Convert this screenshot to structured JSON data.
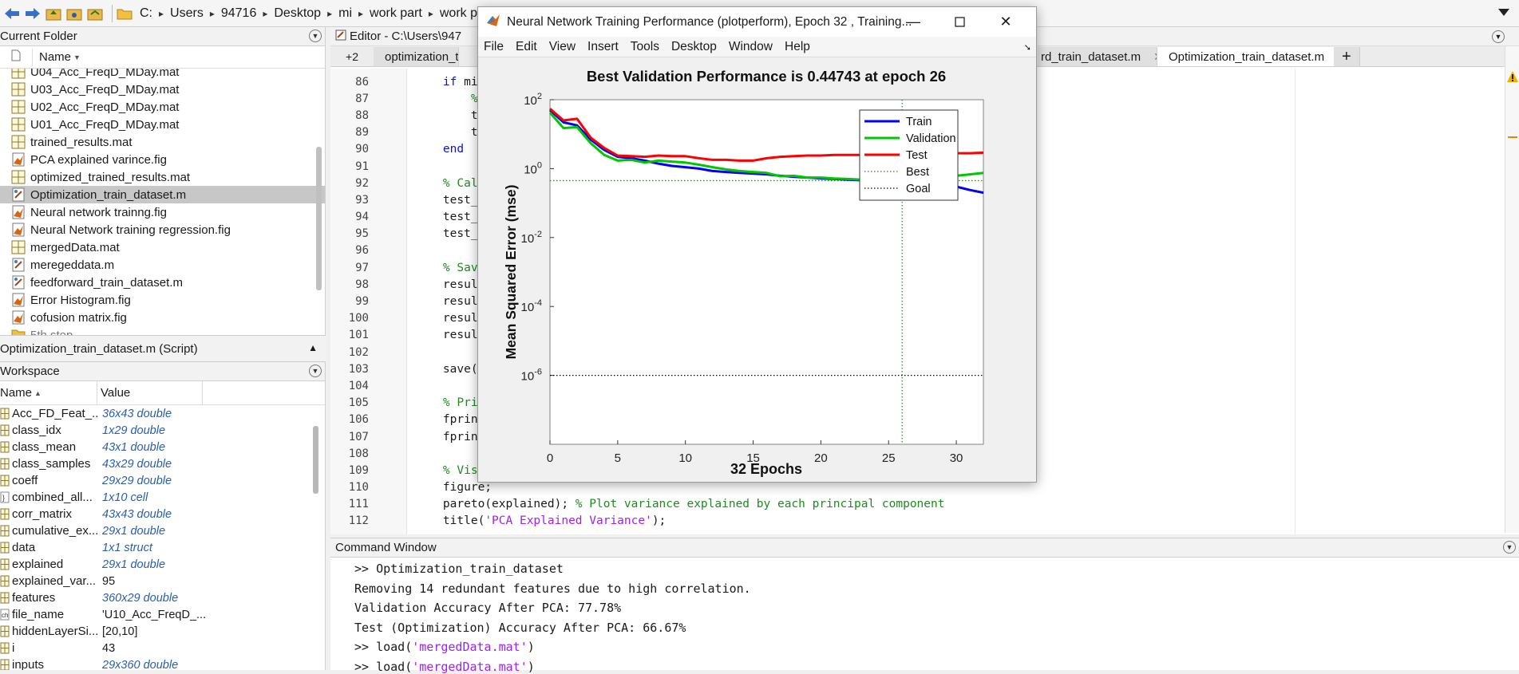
{
  "address": {
    "crumbs": [
      "C:",
      "Users",
      "94716",
      "Desktop",
      "mi",
      "work part",
      "work p"
    ]
  },
  "current_folder": {
    "title": "Current Folder",
    "col_name": "Name",
    "files": [
      {
        "name": "U04_Acc_FreqD_MDay.mat",
        "type": "mat"
      },
      {
        "name": "U03_Acc_FreqD_MDay.mat",
        "type": "mat"
      },
      {
        "name": "U02_Acc_FreqD_MDay.mat",
        "type": "mat"
      },
      {
        "name": "U01_Acc_FreqD_MDay.mat",
        "type": "mat"
      },
      {
        "name": "trained_results.mat",
        "type": "mat"
      },
      {
        "name": "PCA explained varince.fig",
        "type": "fig"
      },
      {
        "name": "optimized_trained_results.mat",
        "type": "mat"
      },
      {
        "name": "Optimization_train_dataset.m",
        "type": "m"
      },
      {
        "name": "Neural network trainng.fig",
        "type": "fig"
      },
      {
        "name": "Neural Network training regression.fig",
        "type": "fig"
      },
      {
        "name": "mergedData.mat",
        "type": "mat"
      },
      {
        "name": "meregeddata.m",
        "type": "m"
      },
      {
        "name": "feedforward_train_dataset.m",
        "type": "m"
      },
      {
        "name": "Error Histogram.fig",
        "type": "fig"
      },
      {
        "name": "cofusion matrix.fig",
        "type": "fig"
      },
      {
        "name": "5th step",
        "type": "folder"
      }
    ]
  },
  "script_info": "Optimization_train_dataset.m  (Script)",
  "workspace": {
    "title": "Workspace",
    "col_name": "Name",
    "col_value": "Value",
    "vars": [
      {
        "name": "Acc_FD_Feat_...",
        "value": "36x43 double",
        "kind": "num"
      },
      {
        "name": "class_idx",
        "value": "1x29 double",
        "kind": "num"
      },
      {
        "name": "class_mean",
        "value": "43x1 double",
        "kind": "num"
      },
      {
        "name": "class_samples",
        "value": "43x29 double",
        "kind": "num"
      },
      {
        "name": "coeff",
        "value": "29x29 double",
        "kind": "num"
      },
      {
        "name": "combined_all...",
        "value": "1x10 cell",
        "kind": "cell"
      },
      {
        "name": "corr_matrix",
        "value": "43x43 double",
        "kind": "num"
      },
      {
        "name": "cumulative_ex...",
        "value": "29x1 double",
        "kind": "num"
      },
      {
        "name": "data",
        "value": "1x1 struct",
        "kind": "struct"
      },
      {
        "name": "explained",
        "value": "29x1 double",
        "kind": "num"
      },
      {
        "name": "explained_var...",
        "value": "95",
        "kind": "scalar"
      },
      {
        "name": "features",
        "value": "360x29 double",
        "kind": "num"
      },
      {
        "name": "file_name",
        "value": "'U10_Acc_FreqD_...",
        "kind": "char"
      },
      {
        "name": "hiddenLayerSi...",
        "value": "[20,10]",
        "kind": "scalar"
      },
      {
        "name": "i",
        "value": "43",
        "kind": "scalar"
      },
      {
        "name": "inputs",
        "value": "29x360 double",
        "kind": "num"
      }
    ]
  },
  "editor": {
    "title": "Editor - C:\\Users\\947",
    "tab_count_badge": "+2",
    "tabs": [
      {
        "label": "optimization_trai",
        "active": false
      },
      {
        "label": "rd_train_dataset.m",
        "active": false
      },
      {
        "label": "Optimization_train_dataset.m",
        "active": true
      }
    ],
    "lines": [
      {
        "n": "86",
        "parts": [
          [
            "    ",
            ""
          ],
          [
            "if",
            "kw"
          ],
          [
            " min_",
            ""
          ]
        ]
      },
      {
        "n": "87",
        "parts": [
          [
            "        ",
            ""
          ],
          [
            "% A",
            "cm"
          ]
        ]
      },
      {
        "n": "88",
        "parts": [
          [
            "        tes",
            ""
          ]
        ]
      },
      {
        "n": "89",
        "parts": [
          [
            "        tes",
            ""
          ]
        ]
      },
      {
        "n": "90",
        "parts": [
          [
            "    ",
            ""
          ],
          [
            "end",
            "kw"
          ]
        ]
      },
      {
        "n": "91",
        "parts": [
          [
            "",
            ""
          ]
        ]
      },
      {
        "n": "92",
        "parts": [
          [
            "    ",
            ""
          ],
          [
            "% Calcu",
            "cm"
          ]
        ]
      },
      {
        "n": "93",
        "parts": [
          [
            "    test_co",
            ""
          ]
        ]
      },
      {
        "n": "94",
        "parts": [
          [
            "    test_to",
            ""
          ]
        ]
      },
      {
        "n": "95",
        "parts": [
          [
            "    test_ac",
            ""
          ]
        ]
      },
      {
        "n": "96",
        "parts": [
          [
            "",
            ""
          ]
        ]
      },
      {
        "n": "97",
        "parts": [
          [
            "    ",
            ""
          ],
          [
            "% Save",
            "cm"
          ]
        ]
      },
      {
        "n": "98",
        "parts": [
          [
            "    results",
            ""
          ]
        ]
      },
      {
        "n": "99",
        "parts": [
          [
            "    results",
            ""
          ]
        ]
      },
      {
        "n": "100",
        "parts": [
          [
            "    results",
            ""
          ]
        ]
      },
      {
        "n": "101",
        "parts": [
          [
            "    results",
            ""
          ]
        ]
      },
      {
        "n": "102",
        "parts": [
          [
            "",
            ""
          ]
        ]
      },
      {
        "n": "103",
        "parts": [
          [
            "    save(",
            ""
          ],
          [
            "'o",
            "st"
          ]
        ]
      },
      {
        "n": "104",
        "parts": [
          [
            "",
            ""
          ]
        ]
      },
      {
        "n": "105",
        "parts": [
          [
            "    ",
            ""
          ],
          [
            "% Print",
            "cm"
          ]
        ]
      },
      {
        "n": "106",
        "parts": [
          [
            "    fprintf",
            ""
          ]
        ]
      },
      {
        "n": "107",
        "parts": [
          [
            "    fprintf",
            ""
          ]
        ]
      },
      {
        "n": "108",
        "parts": [
          [
            "",
            ""
          ]
        ]
      },
      {
        "n": "109",
        "parts": [
          [
            "    ",
            ""
          ],
          [
            "% Visua",
            "cm"
          ]
        ]
      },
      {
        "n": "110",
        "parts": [
          [
            "    figure;",
            ""
          ]
        ]
      },
      {
        "n": "111",
        "parts": [
          [
            "    pareto(explained); ",
            ""
          ],
          [
            "% Plot variance explained by each principal component",
            "cm"
          ]
        ]
      },
      {
        "n": "112",
        "parts": [
          [
            "    title(",
            ""
          ],
          [
            "'PCA Explained Variance'",
            "st"
          ],
          [
            ");",
            ""
          ]
        ]
      }
    ]
  },
  "command_window": {
    "title": "Command Window",
    "lines": [
      {
        "parts": [
          [
            ">> Optimization_train_dataset",
            ""
          ]
        ]
      },
      {
        "parts": [
          [
            "Removing 14 redundant features due to high correlation.",
            ""
          ]
        ]
      },
      {
        "parts": [
          [
            "Validation Accuracy After PCA: 77.78%",
            ""
          ]
        ]
      },
      {
        "parts": [
          [
            "Test (Optimization) Accuracy After PCA: 66.67%",
            ""
          ]
        ]
      },
      {
        "parts": [
          [
            ">> load(",
            ""
          ],
          [
            "'mergedData.mat'",
            "st"
          ],
          [
            ")",
            ""
          ]
        ]
      },
      {
        "parts": [
          [
            ">> load(",
            ""
          ],
          [
            "'mergedData.mat'",
            "st"
          ],
          [
            ")",
            ""
          ]
        ]
      }
    ]
  },
  "figure_window": {
    "title": "Neural Network Training Performance (plotperform), Epoch 32 , Training...",
    "menus": [
      "File",
      "Edit",
      "View",
      "Insert",
      "Tools",
      "Desktop",
      "Window",
      "Help"
    ]
  },
  "chart_data": {
    "type": "line",
    "title": "Best Validation Performance is 0.44743 at epoch 26",
    "xlabel": "32 Epochs",
    "ylabel": "Mean Squared Error  (mse)",
    "xlim": [
      0,
      32
    ],
    "ylim_log10": [
      -8,
      2
    ],
    "yscale": "log",
    "x_ticks": [
      0,
      5,
      10,
      15,
      20,
      25,
      30
    ],
    "y_tick_exponents": [
      2,
      0,
      -2,
      -4,
      -6
    ],
    "y_tick_base": "10",
    "legend_position": "top-right",
    "best": {
      "epoch": 26,
      "value": 0.44743
    },
    "goal": 1e-06,
    "x": [
      0,
      1,
      2,
      3,
      4,
      5,
      6,
      7,
      8,
      9,
      10,
      11,
      12,
      13,
      14,
      15,
      16,
      17,
      18,
      19,
      20,
      21,
      22,
      23,
      24,
      25,
      26,
      27,
      28,
      29,
      30,
      31,
      32
    ],
    "series": [
      {
        "name": "Train",
        "color": "#0000ff",
        "values": [
          50,
          22,
          18,
          7,
          3.5,
          2.2,
          2.0,
          1.7,
          1.4,
          1.2,
          1.1,
          1.0,
          0.85,
          0.8,
          0.75,
          0.72,
          0.68,
          0.62,
          0.58,
          0.55,
          0.52,
          0.5,
          0.48,
          0.46,
          0.44,
          0.42,
          0.4,
          0.4,
          0.42,
          0.38,
          0.3,
          0.24,
          0.2
        ]
      },
      {
        "name": "Validation",
        "color": "#00c800",
        "values": [
          42,
          15,
          16,
          5.5,
          2.5,
          1.7,
          1.8,
          1.5,
          1.7,
          1.6,
          1.5,
          1.3,
          1.1,
          0.95,
          0.85,
          0.8,
          0.75,
          0.6,
          0.62,
          0.55,
          0.55,
          0.52,
          0.5,
          0.48,
          0.5,
          0.46,
          0.44743,
          0.47,
          0.5,
          0.55,
          0.62,
          0.68,
          0.75
        ]
      },
      {
        "name": "Test",
        "color": "#ff0000",
        "values": [
          55,
          25,
          28,
          8,
          4,
          2.4,
          2.3,
          2.2,
          2.4,
          2.3,
          2.3,
          2.0,
          1.8,
          1.8,
          1.7,
          1.7,
          2.0,
          2.2,
          2.3,
          2.4,
          2.4,
          2.5,
          2.5,
          2.5,
          2.6,
          2.6,
          2.7,
          2.7,
          2.7,
          2.8,
          2.8,
          2.8,
          2.9
        ]
      }
    ],
    "legend": [
      {
        "label": "Train",
        "style": "solid",
        "color": "#0000ff"
      },
      {
        "label": "Validation",
        "style": "solid",
        "color": "#00c800"
      },
      {
        "label": "Test",
        "style": "solid",
        "color": "#ff0000"
      },
      {
        "label": "Best",
        "style": "dotted",
        "color": "#00a000"
      },
      {
        "label": "Goal",
        "style": "dotted",
        "color": "#000000"
      }
    ]
  }
}
